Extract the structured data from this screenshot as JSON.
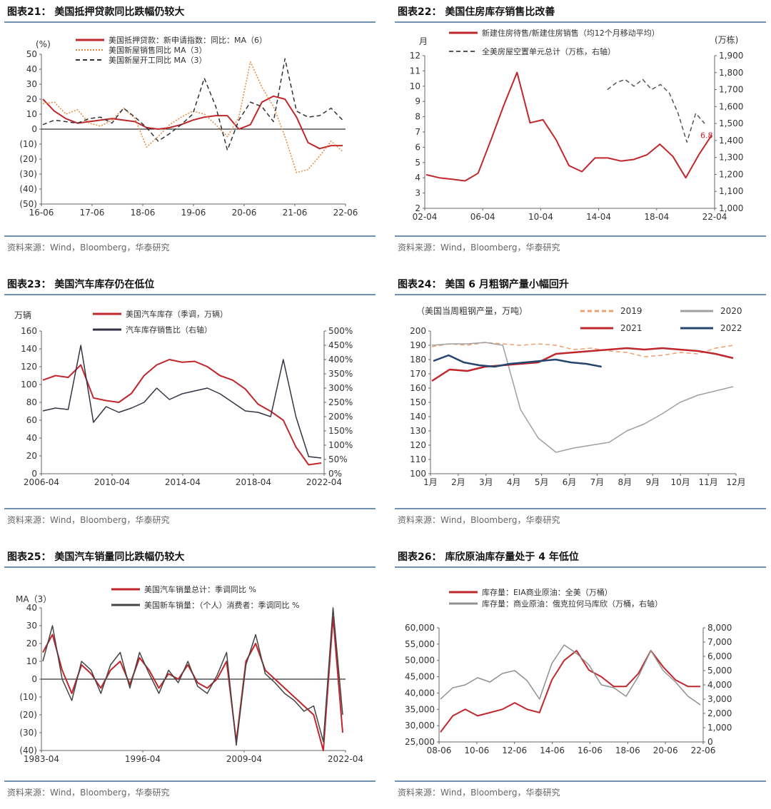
{
  "panels": [
    {
      "title": "图表21：  美国抵押贷款同比跌幅仍较大",
      "source": "资料来源：Wind，Bloomberg，华泰研究"
    },
    {
      "title": "图表22：  美国住房库存销售比改善",
      "source": "资料来源：Wind，Bloomberg，华泰研究"
    },
    {
      "title": "图表23：  美国汽车库存仍在低位",
      "source": "资料来源：Wind，Bloomberg，华泰研究"
    },
    {
      "title": "图表24：  美国 6 月粗钢产量小幅回升",
      "source": "资料来源：Wind，Bloomberg，华泰研究"
    },
    {
      "title": "图表25：  美国汽车销量同比跌幅仍较大",
      "source": "资料来源：Wind，Bloomberg，华泰研究"
    },
    {
      "title": "图表26：  库欣原油库存量处于 4 年低位",
      "source": "资料来源：Wind，Bloomberg，华泰研究"
    }
  ],
  "chart_data": [
    {
      "type": "line",
      "unit_label": "(%)",
      "ylim": [
        -50,
        50
      ],
      "yticks": [
        "50",
        "40",
        "30",
        "20",
        "10",
        "0",
        "(10)",
        "(20)",
        "(30)",
        "(40)",
        "(50)"
      ],
      "xticks": [
        "16-06",
        "17-06",
        "18-06",
        "19-06",
        "20-06",
        "21-06",
        "22-06"
      ],
      "series": [
        {
          "name": "美国抵押贷款：新申请指数：同比：MA（6）",
          "color": "#c0272d",
          "style": "solid",
          "values": [
            20,
            12,
            7,
            4,
            5,
            6,
            7,
            6,
            5,
            1,
            0,
            1,
            3,
            6,
            8,
            9,
            9,
            0,
            3,
            18,
            22,
            20,
            8,
            -9,
            -13,
            -11,
            -11
          ]
        },
        {
          "name": "美国新屋销售同比 MA（3）",
          "color": "#e8883a",
          "style": "dotted",
          "values": [
            17,
            18,
            10,
            13,
            4,
            2,
            6,
            14,
            7,
            -12,
            -5,
            3,
            8,
            12,
            10,
            3,
            -5,
            8,
            45,
            28,
            15,
            -5,
            -29,
            -27,
            -18,
            -8,
            -15
          ]
        },
        {
          "name": "美国新屋开工同比 MA（3）",
          "color": "#333333",
          "style": "dashed",
          "values": [
            3,
            6,
            5,
            4,
            7,
            8,
            4,
            14,
            8,
            1,
            -8,
            -3,
            3,
            10,
            34,
            15,
            -14,
            6,
            18,
            15,
            5,
            47,
            12,
            8,
            9,
            14,
            6
          ]
        }
      ]
    },
    {
      "type": "line",
      "left_unit": "月",
      "right_unit": "(万栋)",
      "ylim": [
        2,
        12
      ],
      "ylim_right": [
        1000,
        1900
      ],
      "yticks": [
        "12",
        "11",
        "10",
        "9",
        "8",
        "7",
        "6",
        "5",
        "4",
        "3",
        "2"
      ],
      "yticks_right": [
        "1,900",
        "1,800",
        "1,700",
        "1,600",
        "1,500",
        "1,400",
        "1,300",
        "1,200",
        "1,100",
        "1,000"
      ],
      "xticks": [
        "02-04",
        "06-04",
        "10-04",
        "14-04",
        "18-04",
        "22-04"
      ],
      "last_label": "6.8",
      "series": [
        {
          "name": "新建住房待售/新建住房销售（均12个月移动平均）",
          "color": "#c0272d",
          "style": "solid",
          "values": [
            4.2,
            4.0,
            3.9,
            3.8,
            4.3,
            6.5,
            8.8,
            10.9,
            7.6,
            7.8,
            6.5,
            4.8,
            4.4,
            5.3,
            5.3,
            5.1,
            5.2,
            5.5,
            6.2,
            5.4,
            4.0,
            5.5,
            6.8
          ]
        },
        {
          "name": "全美房屋空置单元总计（万栋，右轴）",
          "color": "#555555",
          "style": "dashed",
          "values": [
            1700,
            1740,
            1760,
            1720,
            1760,
            1700,
            1730,
            1680,
            1560,
            1390,
            1560,
            1500
          ]
        }
      ]
    },
    {
      "type": "line",
      "left_unit": "万辆",
      "ylim": [
        0,
        160
      ],
      "ylim_right": [
        0,
        500
      ],
      "yticks": [
        "160",
        "140",
        "120",
        "100",
        "80",
        "60",
        "40",
        "20",
        "0"
      ],
      "yticks_right": [
        "500%",
        "450%",
        "400%",
        "350%",
        "300%",
        "250%",
        "200%",
        "150%",
        "100%",
        "50%",
        "0%"
      ],
      "xticks": [
        "2006-04",
        "2010-04",
        "2014-04",
        "2018-04",
        "2022-04"
      ],
      "series": [
        {
          "name": "美国汽车库存（季调，万辆）",
          "color": "#c0272d",
          "style": "solid",
          "values": [
            105,
            110,
            108,
            122,
            85,
            82,
            80,
            90,
            110,
            122,
            128,
            125,
            126,
            120,
            110,
            105,
            95,
            78,
            70,
            60,
            30,
            10,
            12
          ]
        },
        {
          "name": "汽车库存销售比（右轴）",
          "color": "#333344",
          "style": "solid",
          "values": [
            220,
            230,
            225,
            450,
            180,
            235,
            215,
            230,
            250,
            300,
            260,
            280,
            290,
            300,
            280,
            250,
            220,
            215,
            200,
            400,
            200,
            60,
            55
          ]
        }
      ]
    },
    {
      "type": "line",
      "left_unit": "（美国当周粗钢产量，万吨）",
      "ylim": [
        100,
        200
      ],
      "yticks": [
        "200",
        "190",
        "180",
        "170",
        "160",
        "150",
        "140",
        "130",
        "120",
        "110",
        "100"
      ],
      "xticks": [
        "1月",
        "2月",
        "3月",
        "4月",
        "5月",
        "6月",
        "7月",
        "8月",
        "9月",
        "10月",
        "11月",
        "12月"
      ],
      "series": [
        {
          "name": "2019",
          "color": "#f0a070",
          "style": "dashed",
          "values": [
            189,
            191,
            190,
            192,
            191,
            190,
            191,
            190,
            187,
            188,
            186,
            185,
            182,
            183,
            185,
            184,
            188,
            190
          ]
        },
        {
          "name": "2020",
          "color": "#a0a0a0",
          "style": "solid",
          "values": [
            190,
            191,
            191,
            192,
            190,
            145,
            125,
            115,
            118,
            120,
            122,
            130,
            135,
            142,
            150,
            155,
            158,
            161
          ]
        },
        {
          "name": "2021",
          "color": "#c0272d",
          "style": "solid",
          "values": [
            165,
            173,
            172,
            175,
            176,
            177,
            178,
            184,
            185,
            186,
            187,
            188,
            187,
            188,
            187,
            186,
            184,
            181
          ]
        },
        {
          "name": "2022",
          "color": "#24466e",
          "style": "solid",
          "values": [
            179,
            183,
            178,
            176,
            175,
            177,
            178,
            179,
            180,
            178,
            177,
            175
          ]
        }
      ]
    },
    {
      "type": "line",
      "unit_label": "MA（3）",
      "ylim": [
        -40,
        40
      ],
      "yticks": [
        "40",
        "30",
        "20",
        "10",
        "0",
        "(10)",
        "(20)",
        "(30)",
        "(40)"
      ],
      "xticks": [
        "1983-04",
        "1996-04",
        "2009-04",
        "2022-04"
      ],
      "series": [
        {
          "name": "美国汽车销量总计：季调同比 %",
          "color": "#c0272d",
          "style": "solid",
          "values": [
            15,
            25,
            5,
            -8,
            8,
            3,
            -5,
            5,
            10,
            -3,
            12,
            5,
            -5,
            3,
            0,
            8,
            -2,
            -5,
            0,
            10,
            -35,
            10,
            20,
            5,
            0,
            -5,
            -10,
            -15,
            -20,
            -40,
            35,
            -30
          ]
        },
        {
          "name": "美国新车销量：（个人）消费者：季调同比 %",
          "color": "#444444",
          "style": "solid",
          "values": [
            10,
            30,
            0,
            -12,
            10,
            5,
            -8,
            8,
            15,
            -5,
            15,
            3,
            -8,
            5,
            -2,
            10,
            -4,
            -8,
            2,
            15,
            -37,
            8,
            25,
            3,
            -2,
            -8,
            -12,
            -18,
            -15,
            -35,
            40,
            -20
          ]
        }
      ]
    },
    {
      "type": "line",
      "ylim": [
        25000,
        60000
      ],
      "ylim_right": [
        0,
        8000
      ],
      "yticks": [
        "60,000",
        "55,000",
        "50,000",
        "45,000",
        "40,000",
        "35,000",
        "30,000",
        "25,000"
      ],
      "yticks_right": [
        "8,000",
        "7,000",
        "6,000",
        "5,000",
        "4,000",
        "3,000",
        "2,000",
        "1,000",
        "0"
      ],
      "xticks": [
        "08-06",
        "10-06",
        "12-06",
        "14-06",
        "16-06",
        "18-06",
        "20-06",
        "22-06"
      ],
      "series": [
        {
          "name": "库存量：EIA商业原油：全美（万桶）",
          "color": "#c0272d",
          "style": "solid",
          "values": [
            28000,
            33000,
            35000,
            33000,
            34000,
            35000,
            37000,
            35000,
            34000,
            44000,
            50000,
            53000,
            47000,
            45000,
            42000,
            42000,
            46000,
            53000,
            48000,
            44000,
            42000,
            42000
          ]
        },
        {
          "name": "库存量：商业原油：俄克拉何马库欣（万桶，右轴）",
          "color": "#909090",
          "style": "solid",
          "values": [
            3000,
            3800,
            4000,
            4500,
            4200,
            4800,
            5000,
            4300,
            3000,
            5500,
            6800,
            6200,
            5400,
            4000,
            3800,
            3200,
            4600,
            6400,
            5000,
            4200,
            3200,
            2600
          ]
        }
      ]
    }
  ]
}
